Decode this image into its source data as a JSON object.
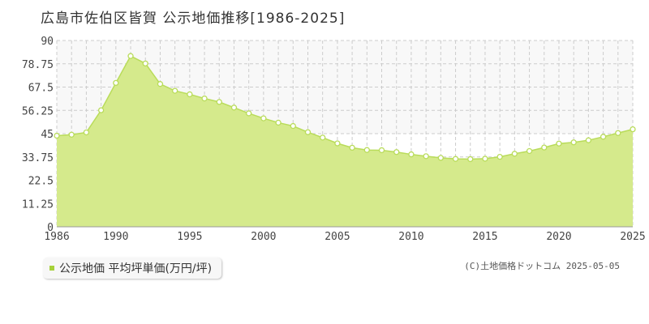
{
  "title": "広島市佐伯区皆賀 公示地価推移[1986-2025]",
  "legend": {
    "label": "公示地価 平均坪単価(万円/坪)"
  },
  "credit": "(C)土地価格ドットコム 2025-05-05",
  "colors": {
    "area_fill": "#d5ea8c",
    "line": "#b9dc5a",
    "marker_stroke": "#b9dc5a",
    "marker_fill": "#ffffff",
    "legend_swatch": "#a6d13a",
    "grid": "#cccccc",
    "upper_band": "#f8f8f8"
  },
  "chart_data": {
    "type": "area",
    "title": "広島市佐伯区皆賀 公示地価推移[1986-2025]",
    "xlabel": "",
    "ylabel": "",
    "ylim": [
      0,
      90
    ],
    "yticks": [
      "0",
      "11.25",
      "22.5",
      "33.75",
      "45",
      "56.25",
      "67.5",
      "78.75",
      "90"
    ],
    "xticks": [
      "1986",
      "1990",
      "1995",
      "2000",
      "2005",
      "2010",
      "2015",
      "2020",
      "2025"
    ],
    "grid": true,
    "legend_position": "bottom-left",
    "series": [
      {
        "name": "公示地価 平均坪単価(万円/坪)",
        "x": [
          1986,
          1987,
          1988,
          1989,
          1990,
          1991,
          1992,
          1993,
          1994,
          1995,
          1996,
          1997,
          1998,
          1999,
          2000,
          2001,
          2002,
          2003,
          2004,
          2005,
          2006,
          2007,
          2008,
          2009,
          2010,
          2011,
          2012,
          2013,
          2014,
          2015,
          2016,
          2017,
          2018,
          2019,
          2020,
          2021,
          2022,
          2023,
          2024,
          2025
        ],
        "values": [
          44.0,
          44.5,
          45.6,
          56.3,
          69.5,
          82.5,
          78.9,
          69.0,
          65.7,
          64.0,
          62.0,
          60.3,
          57.6,
          54.8,
          52.4,
          50.3,
          48.7,
          45.7,
          43.1,
          40.3,
          38.2,
          37.1,
          37.0,
          36.1,
          35.0,
          34.1,
          33.3,
          32.8,
          32.7,
          32.9,
          33.8,
          35.3,
          36.6,
          38.3,
          40.2,
          40.8,
          41.8,
          43.5,
          45.3,
          47.1
        ]
      }
    ]
  }
}
